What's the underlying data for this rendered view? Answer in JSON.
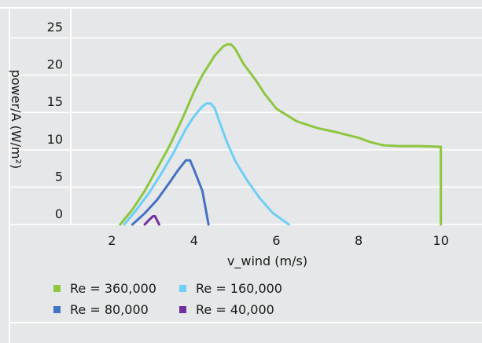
{
  "chart_data": {
    "type": "line",
    "title": "",
    "xlabel": "v_wind (m/s)",
    "ylabel": "power/A (W/m²)",
    "xlim": [
      1,
      11
    ],
    "ylim": [
      0,
      29
    ],
    "xticks": [
      2,
      4,
      6,
      8,
      10
    ],
    "yticks": [
      0,
      5,
      10,
      15,
      20,
      25
    ],
    "grid": "horizontal",
    "legend_position": "bottom",
    "series": [
      {
        "name": "Re = 360,000",
        "color": "#8dc63f",
        "x": [
          2.2,
          2.5,
          2.8,
          3.1,
          3.4,
          3.7,
          4.0,
          4.2,
          4.5,
          4.7,
          4.8,
          4.9,
          5.0,
          5.2,
          5.5,
          5.7,
          6.0,
          6.5,
          7.0,
          7.5,
          8.0,
          8.3,
          8.6,
          9.0,
          9.5,
          10.0,
          10.0
        ],
        "y": [
          0,
          2,
          4.5,
          7.5,
          10.5,
          14,
          17.8,
          20,
          22.6,
          23.8,
          24.1,
          24.1,
          23.5,
          21.5,
          19.3,
          17.6,
          15.5,
          13.8,
          12.9,
          12.3,
          11.6,
          11,
          10.6,
          10.5,
          10.5,
          10.4,
          0
        ]
      },
      {
        "name": "Re = 160,000",
        "color": "#6dcff6",
        "x": [
          2.3,
          2.6,
          2.9,
          3.2,
          3.5,
          3.8,
          4.0,
          4.2,
          4.3,
          4.4,
          4.5,
          4.6,
          4.8,
          5.0,
          5.3,
          5.6,
          5.9,
          6.3
        ],
        "y": [
          0,
          2,
          4.2,
          6.8,
          9.6,
          12.8,
          14.5,
          15.8,
          16.2,
          16.2,
          15.6,
          14,
          11,
          8.5,
          5.8,
          3.5,
          1.6,
          0
        ]
      },
      {
        "name": "Re = 80,000",
        "color": "#4472c4",
        "x": [
          2.5,
          2.8,
          3.1,
          3.4,
          3.6,
          3.8,
          3.9,
          4.0,
          4.2,
          4.35
        ],
        "y": [
          0,
          1.5,
          3.3,
          5.6,
          7.2,
          8.6,
          8.6,
          7.3,
          4.5,
          0
        ]
      },
      {
        "name": "Re = 40,000",
        "color": "#7030a0",
        "x": [
          2.8,
          2.9,
          3.0,
          3.05,
          3.15
        ],
        "y": [
          0,
          0.6,
          1.1,
          1.1,
          0
        ]
      }
    ]
  }
}
